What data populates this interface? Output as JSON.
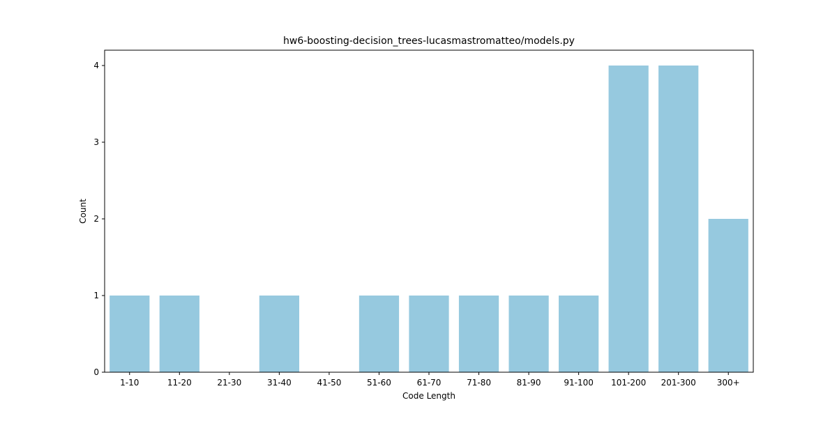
{
  "chart_data": {
    "type": "bar",
    "title": "hw6-boosting-decision_trees-lucasmastromatteo/models.py",
    "xlabel": "Code Length",
    "ylabel": "Count",
    "categories": [
      "1-10",
      "11-20",
      "21-30",
      "31-40",
      "41-50",
      "51-60",
      "61-70",
      "71-80",
      "81-90",
      "91-100",
      "101-200",
      "201-300",
      "300+"
    ],
    "values": [
      1,
      1,
      0,
      1,
      0,
      1,
      1,
      1,
      1,
      1,
      4,
      4,
      2
    ],
    "ylim": [
      0,
      4.2
    ],
    "yticks": [
      "0",
      "1",
      "2",
      "3",
      "4"
    ],
    "grid": false,
    "bar_color": "#96c9df",
    "axis_color": "#000000"
  }
}
